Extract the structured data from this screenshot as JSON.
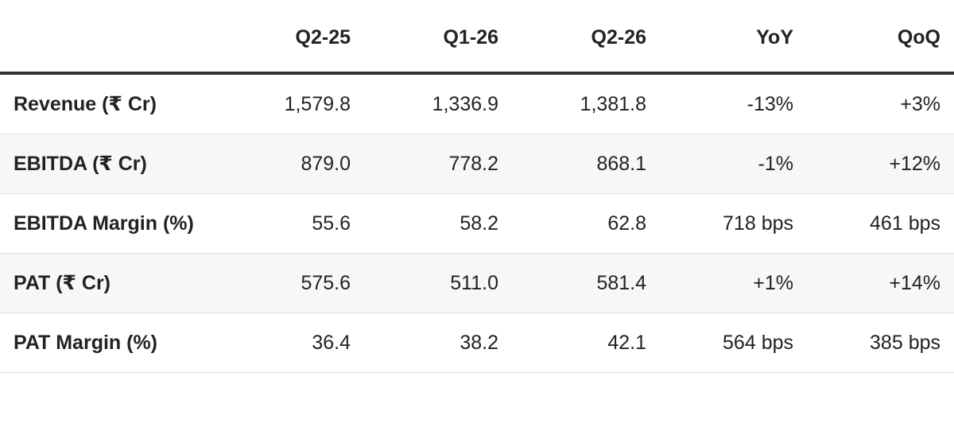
{
  "table": {
    "header": [
      "Q2-25",
      "Q1-26",
      "Q2-26",
      "YoY",
      "QoQ"
    ],
    "rows": [
      [
        "Revenue (₹ Cr)",
        "1,579.8",
        "1,336.9",
        "1,381.8",
        "-13%",
        "+3%"
      ],
      [
        "EBITDA (₹ Cr)",
        "879.0",
        "778.2",
        "868.1",
        "-1%",
        "+12%"
      ],
      [
        "EBITDA Margin (%)",
        "55.6",
        "58.2",
        "62.8",
        "718 bps",
        "461 bps"
      ],
      [
        "PAT (₹ Cr)",
        "575.6",
        "511.0",
        "581.4",
        "+1%",
        "+14%"
      ],
      [
        "PAT Margin (%)",
        "36.4",
        "38.2",
        "42.1",
        "564 bps",
        "385 bps"
      ]
    ]
  }
}
